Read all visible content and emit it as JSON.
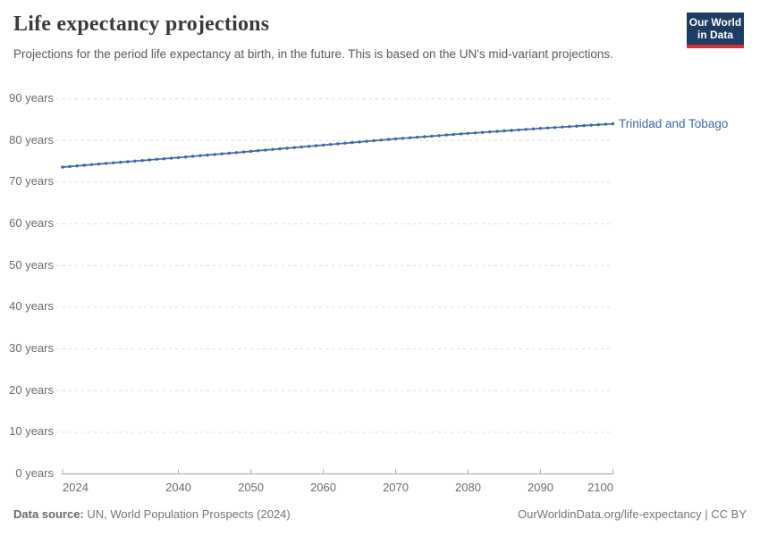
{
  "header": {
    "title": "Life expectancy projections",
    "subtitle": "Projections for the period life expectancy at birth, in the future. This is based on the UN's mid-variant projections.",
    "logo": {
      "line1": "Our World",
      "line2": "in Data",
      "bg_color": "#1d3d63",
      "accent_color": "#d13239"
    }
  },
  "footer": {
    "source_label": "Data source:",
    "source_text": " UN, World Population Prospects (2024)",
    "credit": "OurWorldinData.org/life-expectancy | CC BY"
  },
  "chart_data": {
    "type": "line",
    "title": "Life expectancy projections",
    "unit": "years",
    "grid": "horizontal-dashed",
    "legend_position": "end-of-line-label",
    "xlim": [
      2024,
      2100
    ],
    "ylim": [
      0,
      90
    ],
    "grid_color": "#dcdcdc",
    "axis_color": "#a3a3a3",
    "tick_label_color": "#6b6b6b",
    "yticks": [
      {
        "value": 0,
        "label": "0 years"
      },
      {
        "value": 10,
        "label": "10 years"
      },
      {
        "value": 20,
        "label": "20 years"
      },
      {
        "value": 30,
        "label": "30 years"
      },
      {
        "value": 40,
        "label": "40 years"
      },
      {
        "value": 50,
        "label": "50 years"
      },
      {
        "value": 60,
        "label": "60 years"
      },
      {
        "value": 70,
        "label": "70 years"
      },
      {
        "value": 80,
        "label": "80 years"
      },
      {
        "value": 90,
        "label": "90 years"
      }
    ],
    "xticks": [
      {
        "value": 2024,
        "label": "2024"
      },
      {
        "value": 2040,
        "label": "2040"
      },
      {
        "value": 2050,
        "label": "2050"
      },
      {
        "value": 2060,
        "label": "2060"
      },
      {
        "value": 2070,
        "label": "2070"
      },
      {
        "value": 2080,
        "label": "2080"
      },
      {
        "value": 2090,
        "label": "2090"
      },
      {
        "value": 2100,
        "label": "2100"
      }
    ],
    "x": [
      2024,
      2025,
      2026,
      2027,
      2028,
      2029,
      2030,
      2031,
      2032,
      2033,
      2034,
      2035,
      2036,
      2037,
      2038,
      2039,
      2040,
      2041,
      2042,
      2043,
      2044,
      2045,
      2046,
      2047,
      2048,
      2049,
      2050,
      2051,
      2052,
      2053,
      2054,
      2055,
      2056,
      2057,
      2058,
      2059,
      2060,
      2061,
      2062,
      2063,
      2064,
      2065,
      2066,
      2067,
      2068,
      2069,
      2070,
      2071,
      2072,
      2073,
      2074,
      2075,
      2076,
      2077,
      2078,
      2079,
      2080,
      2081,
      2082,
      2083,
      2084,
      2085,
      2086,
      2087,
      2088,
      2089,
      2090,
      2091,
      2092,
      2093,
      2094,
      2095,
      2096,
      2097,
      2098,
      2099,
      2100
    ],
    "series": [
      {
        "name": "Trinidad and Tobago",
        "color": "#3d66a8",
        "values": [
          73.6,
          73.75,
          73.9,
          74.05,
          74.2,
          74.35,
          74.5,
          74.64,
          74.78,
          74.92,
          75.06,
          75.2,
          75.34,
          75.48,
          75.62,
          75.76,
          75.9,
          76.05,
          76.2,
          76.35,
          76.5,
          76.65,
          76.8,
          76.95,
          77.1,
          77.25,
          77.4,
          77.55,
          77.7,
          77.85,
          78.0,
          78.15,
          78.3,
          78.45,
          78.6,
          78.75,
          78.9,
          79.05,
          79.2,
          79.35,
          79.5,
          79.65,
          79.8,
          79.95,
          80.1,
          80.25,
          80.4,
          80.53,
          80.66,
          80.79,
          80.92,
          81.05,
          81.18,
          81.31,
          81.44,
          81.57,
          81.7,
          81.82,
          81.94,
          82.06,
          82.18,
          82.3,
          82.42,
          82.54,
          82.66,
          82.78,
          82.9,
          83.01,
          83.12,
          83.23,
          83.34,
          83.45,
          83.56,
          83.67,
          83.78,
          83.89,
          84.0
        ]
      }
    ]
  }
}
